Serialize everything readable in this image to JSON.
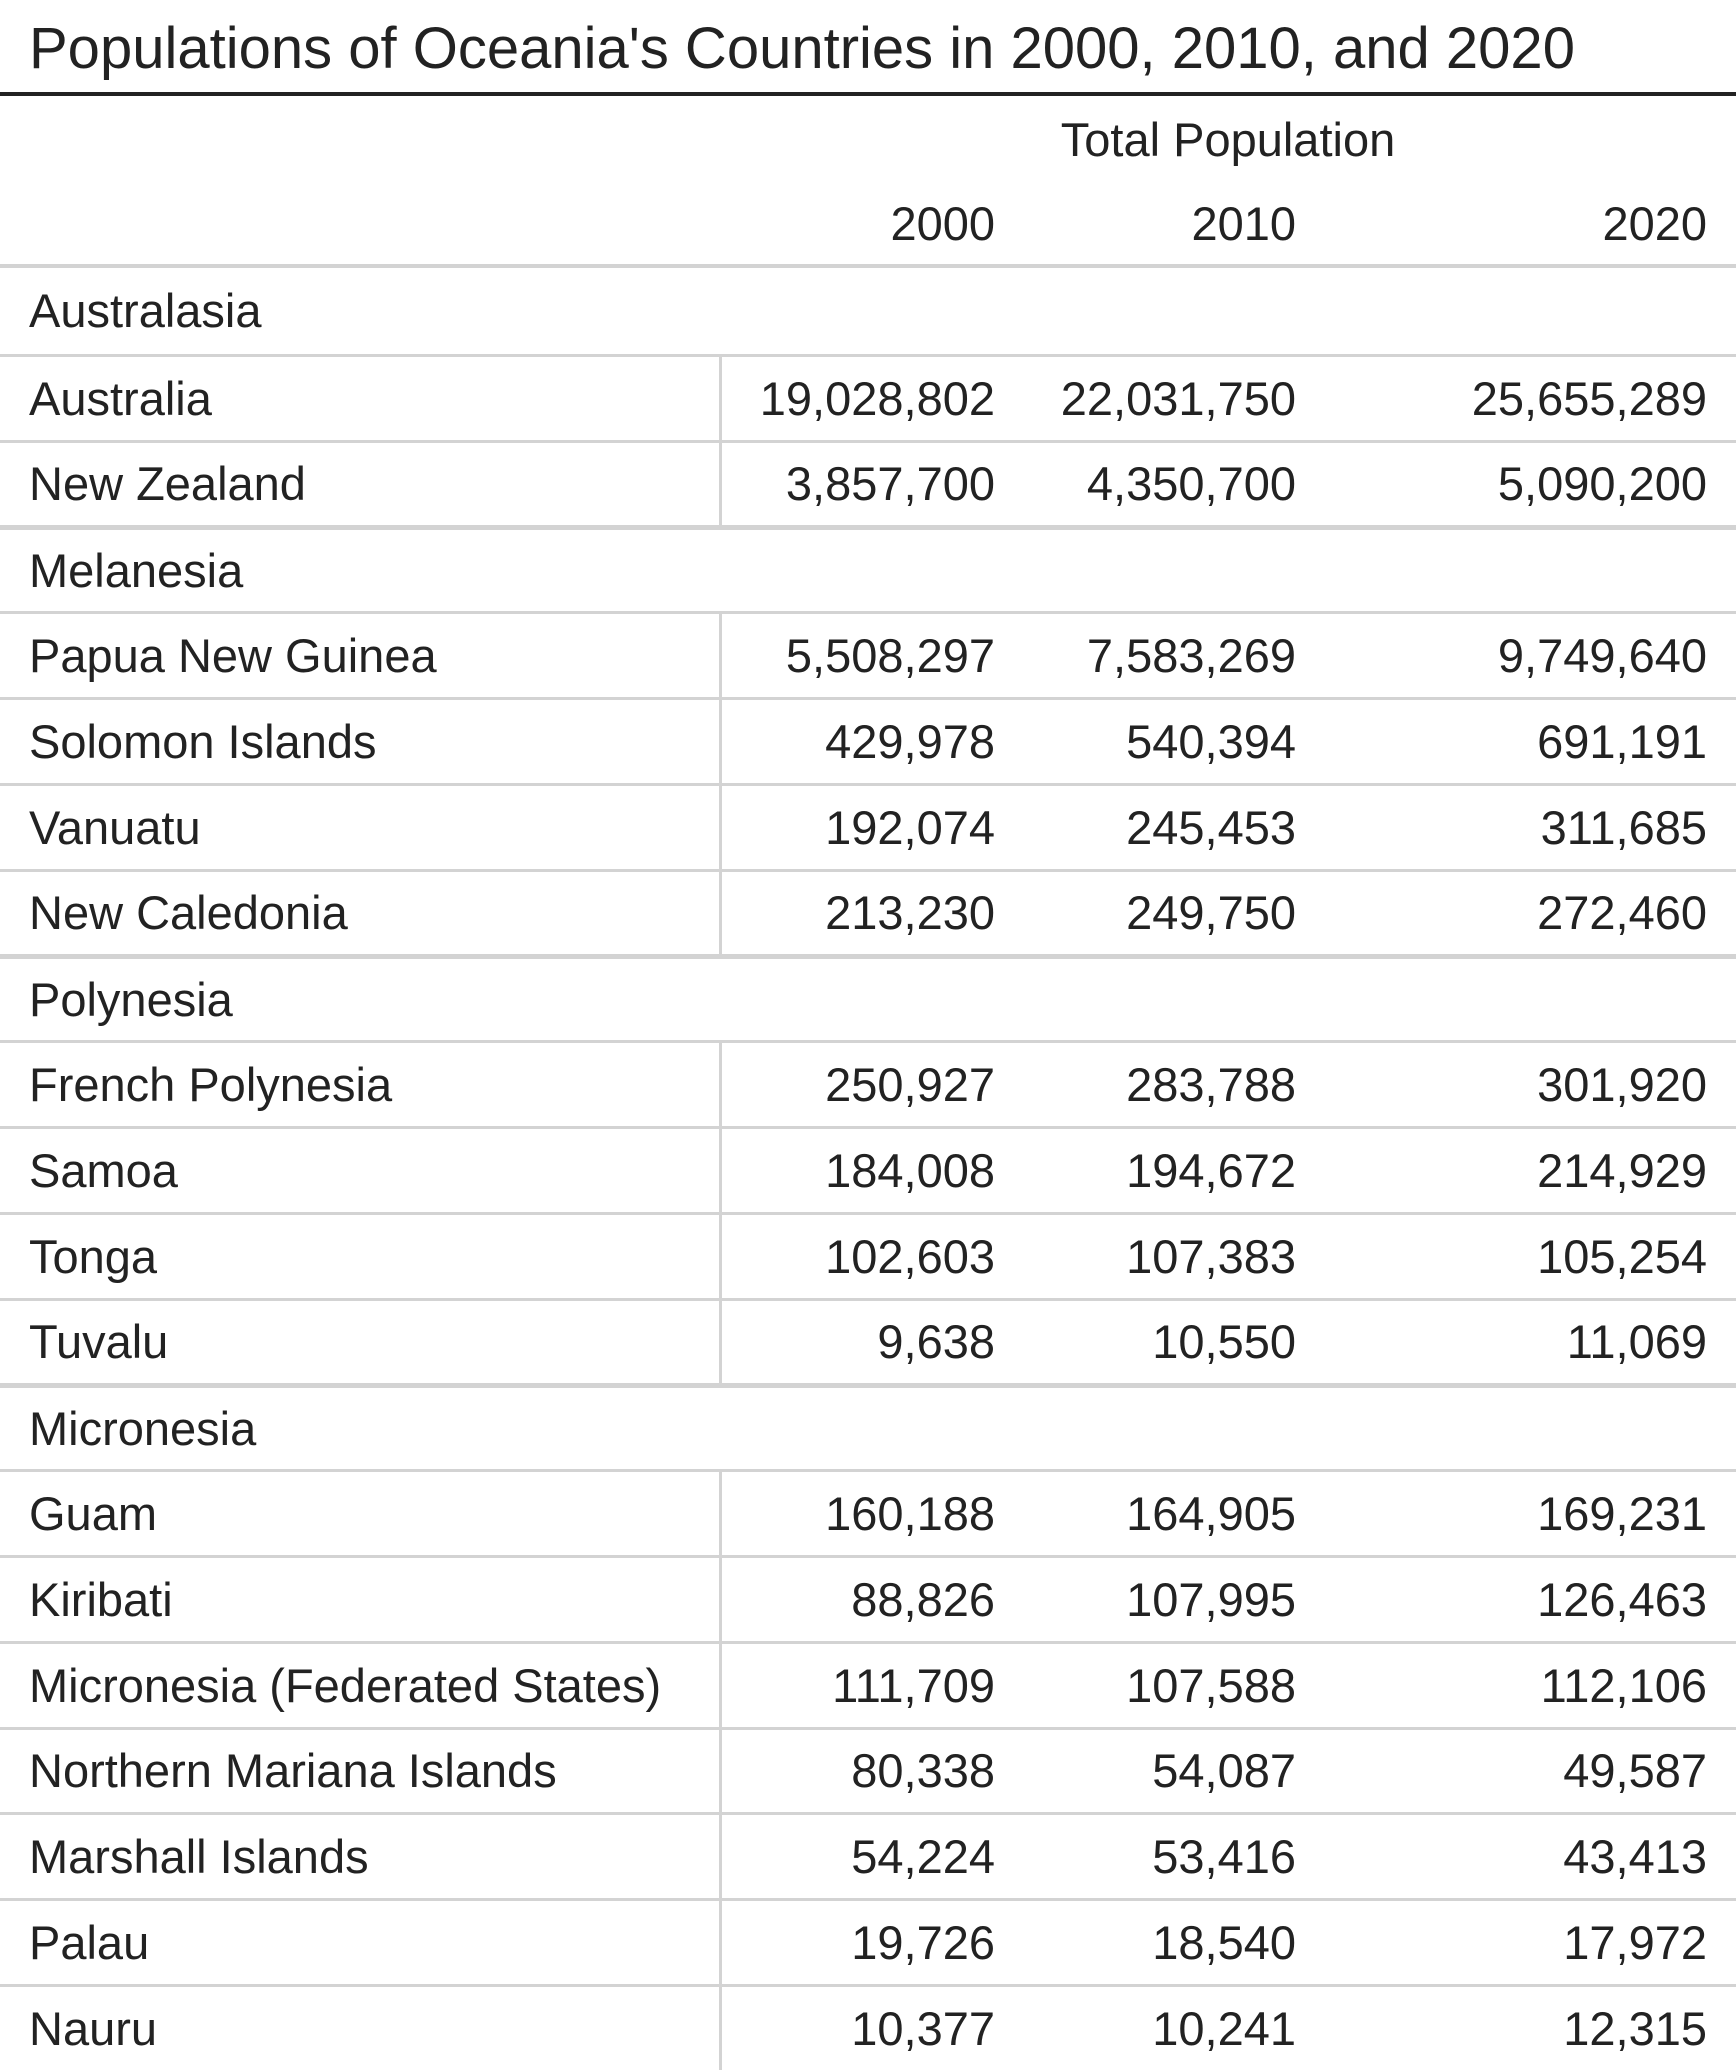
{
  "title": "Populations of Oceania's Countries in 2000, 2010, and 2020",
  "spanner": "Total Population",
  "columns": [
    "2000",
    "2010",
    "2020"
  ],
  "groups": [
    {
      "label": "Australasia",
      "rows": [
        {
          "name": "Australia",
          "values": [
            "19,028,802",
            "22,031,750",
            "25,655,289"
          ]
        },
        {
          "name": "New Zealand",
          "values": [
            "3,857,700",
            "4,350,700",
            "5,090,200"
          ]
        }
      ]
    },
    {
      "label": "Melanesia",
      "rows": [
        {
          "name": "Papua New Guinea",
          "values": [
            "5,508,297",
            "7,583,269",
            "9,749,640"
          ]
        },
        {
          "name": "Solomon Islands",
          "values": [
            "429,978",
            "540,394",
            "691,191"
          ]
        },
        {
          "name": "Vanuatu",
          "values": [
            "192,074",
            "245,453",
            "311,685"
          ]
        },
        {
          "name": "New Caledonia",
          "values": [
            "213,230",
            "249,750",
            "272,460"
          ]
        }
      ]
    },
    {
      "label": "Polynesia",
      "rows": [
        {
          "name": "French Polynesia",
          "values": [
            "250,927",
            "283,788",
            "301,920"
          ]
        },
        {
          "name": "Samoa",
          "values": [
            "184,008",
            "194,672",
            "214,929"
          ]
        },
        {
          "name": "Tonga",
          "values": [
            "102,603",
            "107,383",
            "105,254"
          ]
        },
        {
          "name": "Tuvalu",
          "values": [
            "9,638",
            "10,550",
            "11,069"
          ]
        }
      ]
    },
    {
      "label": "Micronesia",
      "rows": [
        {
          "name": "Guam",
          "values": [
            "160,188",
            "164,905",
            "169,231"
          ]
        },
        {
          "name": "Kiribati",
          "values": [
            "88,826",
            "107,995",
            "126,463"
          ]
        },
        {
          "name": "Micronesia (Federated States)",
          "values": [
            "111,709",
            "107,588",
            "112,106"
          ]
        },
        {
          "name": "Northern Mariana Islands",
          "values": [
            "80,338",
            "54,087",
            "49,587"
          ]
        },
        {
          "name": "Marshall Islands",
          "values": [
            "54,224",
            "53,416",
            "43,413"
          ]
        },
        {
          "name": "Palau",
          "values": [
            "19,726",
            "18,540",
            "17,972"
          ]
        },
        {
          "name": "Nauru",
          "values": [
            "10,377",
            "10,241",
            "12,315"
          ]
        }
      ]
    }
  ]
}
